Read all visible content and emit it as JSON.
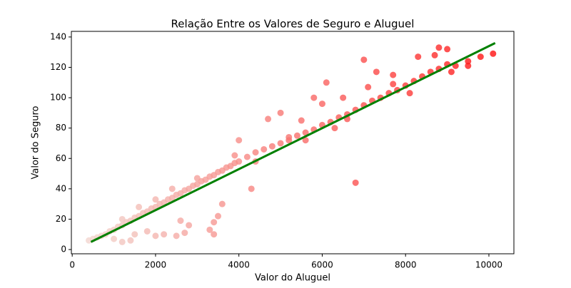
{
  "chart_data": {
    "type": "scatter",
    "title": "Relação Entre os Valores de Seguro e Aluguel",
    "x_label": "Valor do Aluguel",
    "y_label": "Valor do Seguro",
    "xlim": [
      -20,
      10600
    ],
    "ylim": [
      -2.8,
      143.7
    ],
    "xticks": [
      0,
      2000,
      4000,
      6000,
      8000,
      10000
    ],
    "yticks": [
      0,
      20,
      40,
      60,
      80,
      100,
      120,
      140
    ],
    "color_range": [
      "#f2d6cf",
      "#ff1010"
    ],
    "x": [
      400,
      500,
      600,
      700,
      800,
      900,
      1000,
      1100,
      1200,
      1300,
      1400,
      1500,
      1600,
      1700,
      1800,
      1900,
      2000,
      2100,
      2200,
      2300,
      2400,
      2500,
      2600,
      2700,
      2800,
      2900,
      3000,
      3100,
      3200,
      3300,
      3400,
      3500,
      3600,
      3700,
      3800,
      3900,
      4000,
      4200,
      4400,
      4600,
      4800,
      5000,
      5200,
      5400,
      5600,
      5800,
      6000,
      6200,
      6400,
      6600,
      6800,
      7000,
      7200,
      7400,
      7600,
      7800,
      8000,
      8200,
      8400,
      8600,
      8800,
      9000,
      9200,
      9500,
      9800,
      10100,
      1000,
      1200,
      1400,
      1500,
      1800,
      2000,
      2200,
      2500,
      2700,
      3300,
      3400,
      3400,
      3500,
      2600,
      2800,
      4700,
      5000,
      5800,
      6100,
      6500,
      6800,
      7000,
      7300,
      7700,
      8300,
      8700,
      8800,
      9000,
      4000,
      5500,
      6000,
      7100,
      7700,
      3600,
      4300,
      2400,
      3000,
      3900,
      5200,
      6300,
      1200,
      1600,
      2000,
      4400,
      5600,
      6600,
      8100,
      9100,
      9500
    ],
    "y": [
      6,
      7,
      8,
      9,
      10,
      12,
      13,
      15,
      16,
      18,
      19,
      21,
      22,
      24,
      25,
      27,
      28,
      30,
      31,
      33,
      34,
      36,
      37,
      39,
      40,
      42,
      43,
      45,
      46,
      48,
      49,
      51,
      52,
      54,
      55,
      57,
      58,
      61,
      64,
      66,
      68,
      70,
      72,
      75,
      77,
      79,
      82,
      84,
      87,
      89,
      92,
      95,
      98,
      100,
      103,
      105,
      108,
      111,
      114,
      117,
      119,
      122,
      121,
      124,
      127,
      129,
      7,
      5,
      6,
      10,
      12,
      9,
      10,
      9,
      11,
      13,
      10,
      18,
      22,
      19,
      16,
      86,
      90,
      100,
      110,
      100,
      44,
      125,
      117,
      115,
      127,
      128,
      133,
      132,
      72,
      85,
      96,
      107,
      109,
      30,
      40,
      40,
      47,
      62,
      74,
      80,
      20,
      28,
      33,
      58,
      72,
      86,
      103,
      117,
      121
    ],
    "regression": {
      "x": [
        450,
        10150
      ],
      "y": [
        5,
        136
      ],
      "color": "#008000"
    }
  }
}
